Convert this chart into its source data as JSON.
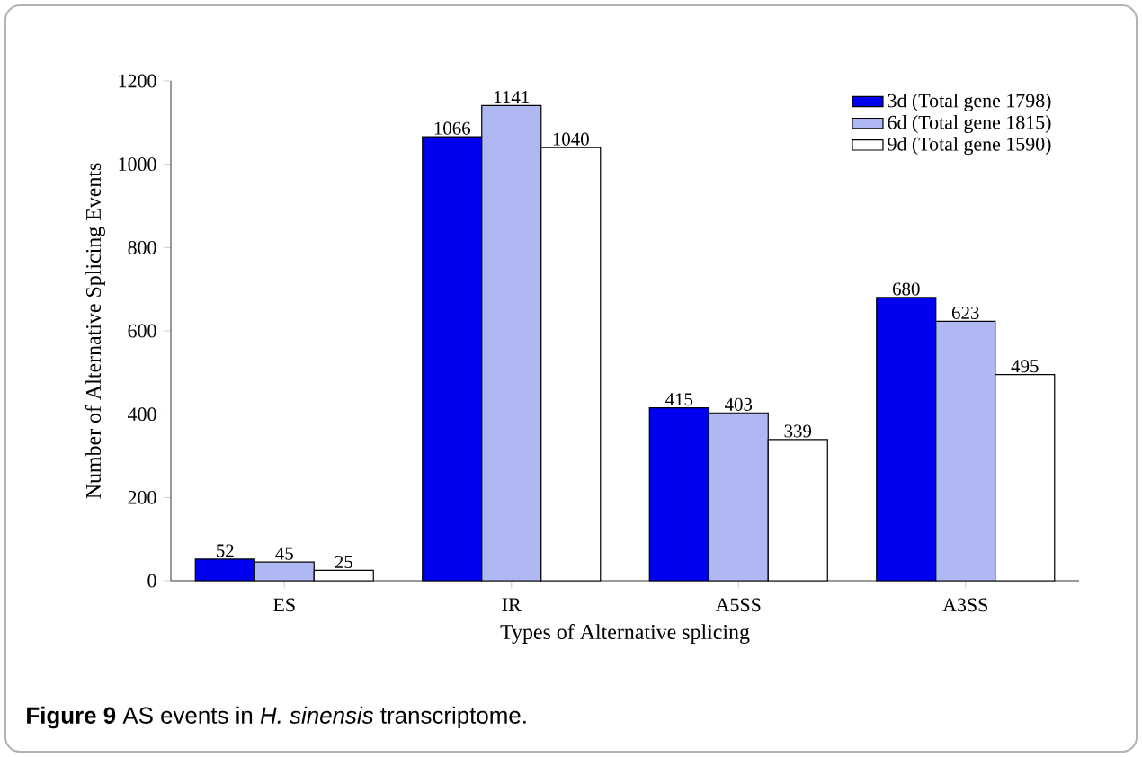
{
  "chart_data": {
    "type": "bar",
    "xlabel": "Types of Alternative splicing",
    "ylabel": "Number of Alternative Splicing Events",
    "categories": [
      "ES",
      "IR",
      "A5SS",
      "A3SS"
    ],
    "series": [
      {
        "name": "3d (Total gene 1798)",
        "color": "#0000f0",
        "values": [
          52,
          1066,
          415,
          680
        ]
      },
      {
        "name": "6d (Total gene 1815)",
        "color": "#b0b8f4",
        "values": [
          45,
          1141,
          403,
          623
        ]
      },
      {
        "name": "9d (Total gene 1590)",
        "color": "#ffffff",
        "values": [
          25,
          1040,
          339,
          495
        ]
      }
    ],
    "ylim": [
      0,
      1200
    ],
    "yticks": [
      0,
      200,
      400,
      600,
      800,
      1000,
      1200
    ],
    "data_labels": true,
    "legend": "top right",
    "annotations": [
      "**Figure 9** AS events in *H. sinensis* transcriptome."
    ]
  }
}
